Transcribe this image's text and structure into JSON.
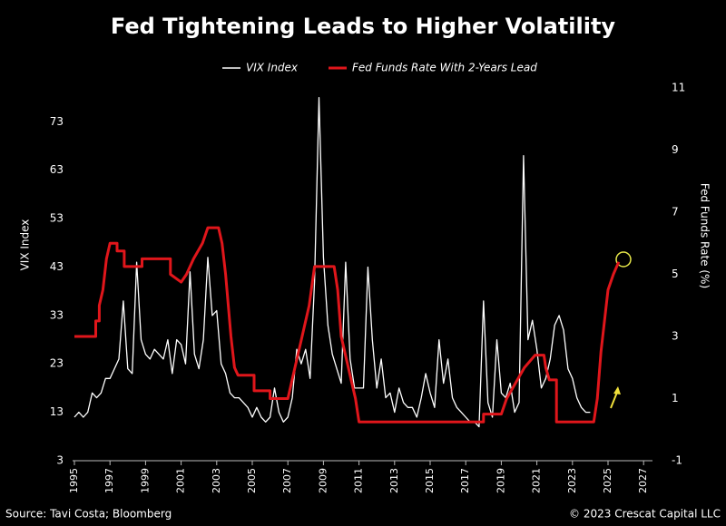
{
  "chart_data": {
    "type": "line",
    "title": "Fed Tightening Leads to Higher Volatility",
    "y_label": "VIX Index",
    "y2_label": "Fed Funds Rate (%)",
    "source": "Source: Tavi Costa; Bloomberg",
    "copyright": "© 2023 Crescat Capital LLC",
    "xlim": [
      1995,
      2027.5
    ],
    "xticks": [
      1995,
      1997,
      1999,
      2001,
      2003,
      2005,
      2007,
      2009,
      2011,
      2013,
      2015,
      2017,
      2019,
      2021,
      2023,
      2025,
      2027
    ],
    "ylim": [
      3,
      80
    ],
    "yticks": [
      3,
      13,
      23,
      33,
      43,
      53,
      63,
      73
    ],
    "y2lim": [
      -1,
      11
    ],
    "y2ticks": [
      -1,
      1,
      3,
      5,
      7,
      9,
      11
    ],
    "series": [
      {
        "name": "VIX Index",
        "color": "#ffffff",
        "x": [
          1995,
          1995.25,
          1995.5,
          1995.75,
          1996,
          1996.25,
          1996.5,
          1996.75,
          1997,
          1997.25,
          1997.5,
          1997.75,
          1998,
          1998.25,
          1998.5,
          1998.75,
          1999,
          1999.25,
          1999.5,
          1999.75,
          2000,
          2000.25,
          2000.5,
          2000.75,
          2001,
          2001.25,
          2001.5,
          2001.75,
          2002,
          2002.25,
          2002.5,
          2002.75,
          2003,
          2003.25,
          2003.5,
          2003.75,
          2004,
          2004.25,
          2004.5,
          2004.75,
          2005,
          2005.25,
          2005.5,
          2005.75,
          2006,
          2006.25,
          2006.5,
          2006.75,
          2007,
          2007.25,
          2007.5,
          2007.75,
          2008,
          2008.25,
          2008.5,
          2008.75,
          2009,
          2009.25,
          2009.5,
          2009.75,
          2010,
          2010.25,
          2010.5,
          2010.75,
          2011,
          2011.25,
          2011.5,
          2011.75,
          2012,
          2012.25,
          2012.5,
          2012.75,
          2013,
          2013.25,
          2013.5,
          2013.75,
          2014,
          2014.25,
          2014.5,
          2014.75,
          2015,
          2015.25,
          2015.5,
          2015.75,
          2016,
          2016.25,
          2016.5,
          2016.75,
          2017,
          2017.25,
          2017.5,
          2017.75,
          2018,
          2018.25,
          2018.5,
          2018.75,
          2019,
          2019.25,
          2019.5,
          2019.75,
          2020,
          2020.25,
          2020.5,
          2020.75,
          2021,
          2021.25,
          2021.5,
          2021.75,
          2022,
          2022.25,
          2022.5,
          2022.75,
          2023,
          2023.25,
          2023.5,
          2023.75,
          2024
        ],
        "values": [
          12,
          13,
          12,
          13,
          17,
          16,
          17,
          20,
          20,
          22,
          24,
          36,
          22,
          21,
          44,
          28,
          25,
          24,
          26,
          25,
          24,
          28,
          21,
          28,
          27,
          23,
          42,
          25,
          22,
          28,
          45,
          33,
          34,
          23,
          21,
          17,
          16,
          16,
          15,
          14,
          12,
          14,
          12,
          11,
          12,
          18,
          13,
          11,
          12,
          16,
          26,
          23,
          26,
          20,
          40,
          78,
          45,
          31,
          25,
          22,
          19,
          44,
          24,
          18,
          18,
          18,
          43,
          28,
          18,
          24,
          16,
          17,
          13,
          18,
          15,
          14,
          14,
          12,
          16,
          21,
          17,
          14,
          28,
          19,
          24,
          16,
          14,
          13,
          12,
          11,
          11,
          10,
          36,
          15,
          12,
          28,
          17,
          16,
          19,
          13,
          15,
          66,
          28,
          32,
          26,
          18,
          20,
          24,
          31,
          33,
          30,
          22,
          20,
          16,
          14,
          13,
          13
        ]
      },
      {
        "name": "Fed Funds Rate With 2-Years Lead",
        "color": "#e0161b",
        "axis": "y2",
        "x": [
          1995,
          1996.2,
          1996.2,
          1996.4,
          1996.4,
          1996.6,
          1996.8,
          1997,
          1997.4,
          1997.4,
          1997.8,
          1997.8,
          1998.8,
          1998.8,
          2000.4,
          2000.4,
          2001,
          2001.3,
          2001.7,
          2002.2,
          2002.5,
          2003.1,
          2003.3,
          2003.5,
          2003.8,
          2004,
          2004.2,
          2005.1,
          2005.1,
          2006,
          2006,
          2007,
          2007.4,
          2007.8,
          2008.2,
          2008.5,
          2009.6,
          2009.8,
          2010,
          2010.4,
          2010.8,
          2011,
          2018,
          2018,
          2019,
          2019.3,
          2019.8,
          2020.3,
          2020.9,
          2021.4,
          2021.5,
          2021.7,
          2022.1,
          2022.1,
          2024.2,
          2024.4,
          2024.6,
          2024.8,
          2025,
          2025.3,
          2025.6
        ],
        "values": [
          3,
          3,
          3.5,
          3.5,
          4,
          4.5,
          5.5,
          6,
          6,
          5.75,
          5.75,
          5.25,
          5.25,
          5.5,
          5.5,
          5,
          4.75,
          5,
          5.5,
          6,
          6.5,
          6.5,
          6,
          5,
          3,
          2,
          1.75,
          1.75,
          1.25,
          1.25,
          1,
          1,
          2,
          3,
          4,
          5.25,
          5.25,
          4.5,
          3,
          2,
          1,
          0.25,
          0.25,
          0.5,
          0.5,
          1,
          1.5,
          2,
          2.4,
          2.4,
          2,
          1.6,
          1.6,
          0.25,
          0.25,
          1,
          2.5,
          3.5,
          4.5,
          5,
          5.4
        ]
      }
    ]
  }
}
